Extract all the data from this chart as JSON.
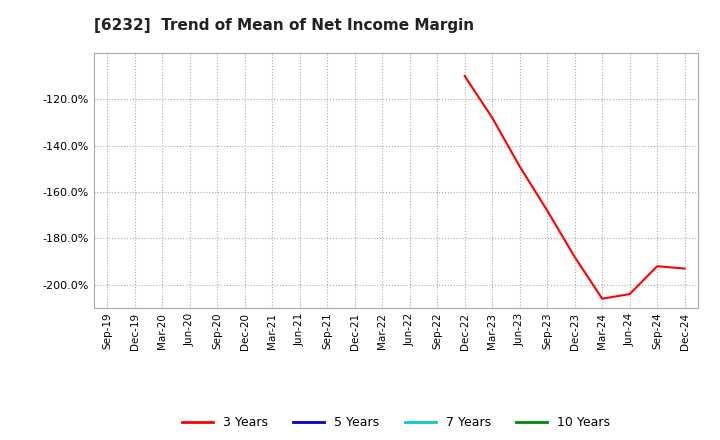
{
  "title": "[6232]  Trend of Mean of Net Income Margin",
  "background_color": "#ffffff",
  "plot_bg_color": "#ffffff",
  "grid_color": "#aaaaaa",
  "x_labels": [
    "Sep-19",
    "Dec-19",
    "Mar-20",
    "Jun-20",
    "Sep-20",
    "Dec-20",
    "Mar-21",
    "Jun-21",
    "Sep-21",
    "Dec-21",
    "Mar-22",
    "Jun-22",
    "Sep-22",
    "Dec-22",
    "Mar-23",
    "Jun-23",
    "Sep-23",
    "Dec-23",
    "Mar-24",
    "Jun-24",
    "Sep-24",
    "Dec-24"
  ],
  "series": {
    "3 Years": {
      "color": "#ff0000",
      "values": [
        null,
        null,
        null,
        null,
        null,
        null,
        null,
        null,
        null,
        null,
        null,
        null,
        null,
        -110,
        -128,
        -149,
        -168,
        -188,
        -206,
        -204,
        -192,
        -193
      ]
    },
    "5 Years": {
      "color": "#0000cc",
      "values": [
        null,
        null,
        null,
        null,
        null,
        null,
        null,
        null,
        null,
        null,
        null,
        null,
        null,
        null,
        null,
        null,
        null,
        null,
        null,
        null,
        null,
        null
      ]
    },
    "7 Years": {
      "color": "#00cccc",
      "values": [
        null,
        null,
        null,
        null,
        null,
        null,
        null,
        null,
        null,
        null,
        null,
        null,
        null,
        null,
        null,
        null,
        null,
        null,
        null,
        null,
        null,
        null
      ]
    },
    "10 Years": {
      "color": "#008800",
      "values": [
        null,
        null,
        null,
        null,
        null,
        null,
        null,
        null,
        null,
        null,
        null,
        null,
        null,
        null,
        null,
        null,
        null,
        null,
        null,
        null,
        null,
        null
      ]
    }
  },
  "ylim": [
    -210,
    -100
  ],
  "yticks": [
    -200,
    -180,
    -160,
    -140,
    -120
  ],
  "legend_labels": [
    "3 Years",
    "5 Years",
    "7 Years",
    "10 Years"
  ],
  "legend_colors": [
    "#ff0000",
    "#0000cc",
    "#00cccc",
    "#008800"
  ]
}
